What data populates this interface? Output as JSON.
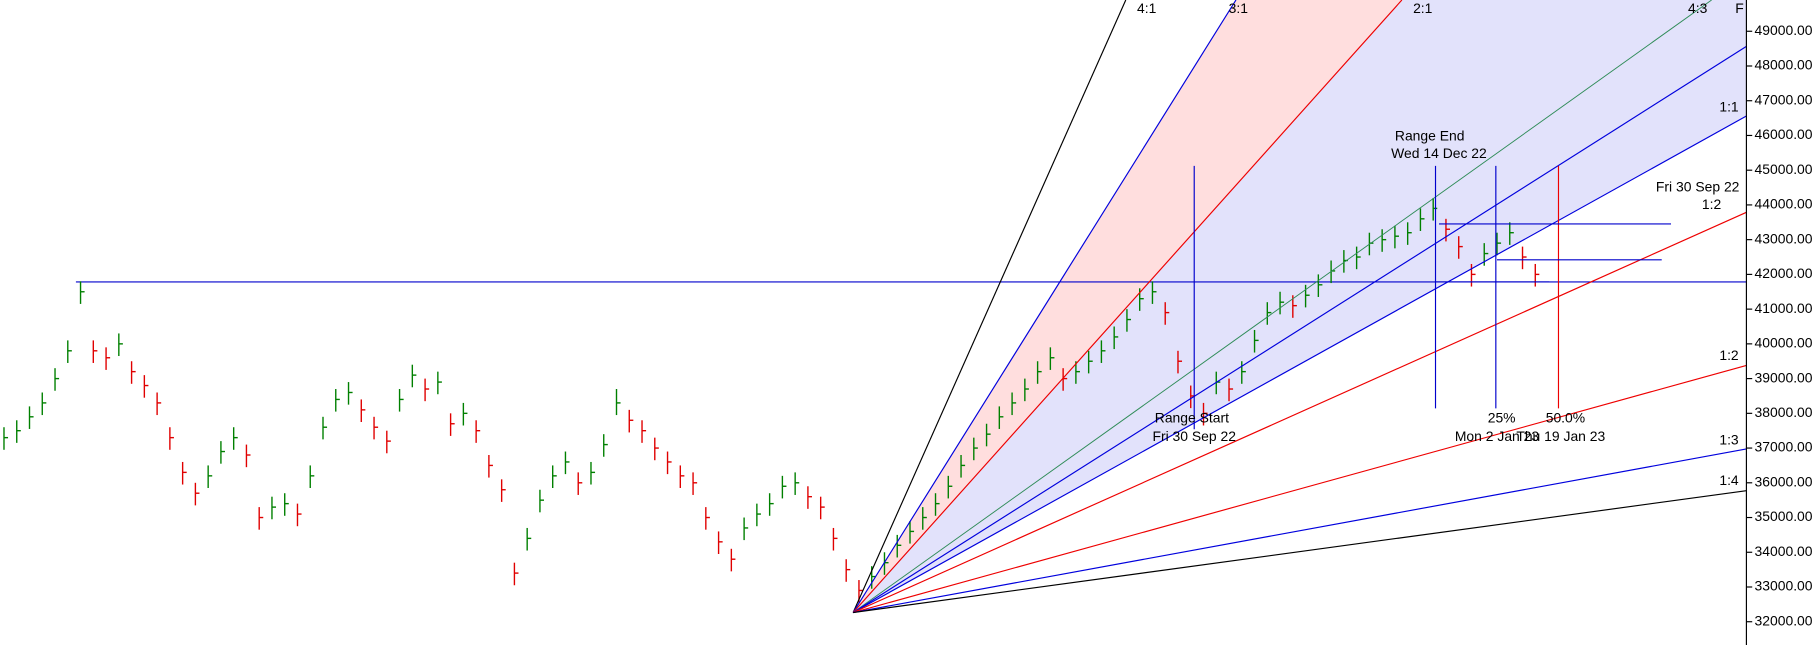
{
  "chart_data": {
    "type": "ohlc",
    "up_color": "#008000",
    "down_color": "#e00000",
    "ylim": [
      31330,
      49900
    ],
    "yticks": [
      {
        "value": 32000,
        "label": "32000.00"
      },
      {
        "value": 33000,
        "label": "33000.00"
      },
      {
        "value": 34000,
        "label": "34000.00"
      },
      {
        "value": 35000,
        "label": "35000.00"
      },
      {
        "value": 36000,
        "label": "36000.00"
      },
      {
        "value": 37000,
        "label": "37000.00"
      },
      {
        "value": 38000,
        "label": "38000.00"
      },
      {
        "value": 39000,
        "label": "39000.00"
      },
      {
        "value": 40000,
        "label": "40000.00"
      },
      {
        "value": 41000,
        "label": "41000.00"
      },
      {
        "value": 42000,
        "label": "42000.00"
      },
      {
        "value": 43000,
        "label": "43000.00"
      },
      {
        "value": 44000,
        "label": "44000.00"
      },
      {
        "value": 45000,
        "label": "45000.00"
      },
      {
        "value": 46000,
        "label": "46000.00"
      },
      {
        "value": 47000,
        "label": "47000.00"
      },
      {
        "value": 48000,
        "label": "48000.00"
      },
      {
        "value": 49000,
        "label": "49000.00"
      }
    ],
    "high": [
      37600,
      37800,
      38200,
      38600,
      39300,
      40100,
      41800,
      40100,
      39900,
      40300,
      39500,
      39100,
      38600,
      37600,
      36600,
      36000,
      36500,
      37200,
      37600,
      37100,
      35300,
      35600,
      35700,
      35400,
      36500,
      37900,
      38700,
      38900,
      38400,
      37900,
      37500,
      38700,
      39400,
      39000,
      39200,
      38000,
      38300,
      37800,
      36800,
      36100,
      33700,
      34700,
      35800,
      36500,
      36900,
      36300,
      36600,
      37400,
      38700,
      38100,
      37800,
      37300,
      36900,
      36500,
      36300,
      35300,
      34600,
      34100,
      35000,
      35400,
      35700,
      36200,
      36300,
      35900,
      35600,
      34700,
      33800,
      33200,
      33600,
      34000,
      34500,
      34900,
      35300,
      35700,
      36200,
      36800,
      37300,
      37700,
      38200,
      38600,
      39000,
      39500,
      39900,
      39300,
      39500,
      39800,
      40100,
      40500,
      41000,
      41600,
      41800,
      41200,
      39800,
      38800,
      38300,
      39200,
      39000,
      39500,
      40400,
      41200,
      41500,
      41400,
      41700,
      42000,
      42400,
      42700,
      42800,
      43200,
      43300,
      43400,
      43500,
      43900,
      44200,
      43600,
      43100,
      42300,
      42900,
      43200,
      43500,
      42800,
      42300
    ],
    "low": [
      36950,
      37150,
      37550,
      37950,
      38650,
      39450,
      41150,
      39450,
      39250,
      39650,
      38850,
      38450,
      37950,
      36950,
      35950,
      35350,
      35850,
      36550,
      36950,
      36450,
      34650,
      34950,
      35050,
      34750,
      35850,
      37250,
      38050,
      38250,
      37750,
      37250,
      36850,
      38050,
      38750,
      38350,
      38550,
      37350,
      37650,
      37150,
      36150,
      35450,
      33050,
      34050,
      35150,
      35850,
      36250,
      35650,
      35950,
      36750,
      37950,
      37450,
      37150,
      36650,
      36250,
      35850,
      35650,
      34650,
      33950,
      33450,
      34350,
      34750,
      35050,
      35550,
      35650,
      35250,
      34950,
      34050,
      33150,
      32550,
      32950,
      33350,
      33850,
      34250,
      34650,
      35050,
      35550,
      36150,
      36650,
      37050,
      37550,
      37950,
      38350,
      38850,
      39250,
      38650,
      38850,
      39150,
      39450,
      39850,
      40350,
      40950,
      41150,
      40550,
      39150,
      38150,
      37650,
      38550,
      38350,
      38850,
      39750,
      40550,
      40850,
      40750,
      41050,
      41350,
      41750,
      42050,
      42150,
      42550,
      42650,
      42750,
      42850,
      43250,
      43550,
      42950,
      42450,
      41650,
      42250,
      42550,
      42850,
      42150,
      41650
    ],
    "close": [
      37300,
      37500,
      37900,
      38300,
      39000,
      39800,
      41500,
      39800,
      39600,
      40000,
      39200,
      38800,
      38300,
      37300,
      36300,
      35700,
      36200,
      36900,
      37300,
      36800,
      35000,
      35300,
      35400,
      35100,
      36200,
      37600,
      38400,
      38600,
      38100,
      37600,
      37200,
      38400,
      39100,
      38700,
      38900,
      37700,
      38000,
      37500,
      36500,
      35800,
      33400,
      34400,
      35500,
      36200,
      36600,
      36000,
      36300,
      37100,
      38300,
      37800,
      37500,
      37000,
      36600,
      36200,
      36000,
      35000,
      34300,
      33800,
      34700,
      35100,
      35400,
      35900,
      36000,
      35600,
      35300,
      34400,
      33500,
      32900,
      33300,
      33700,
      34200,
      34600,
      35000,
      35400,
      35900,
      36500,
      37000,
      37400,
      37900,
      38300,
      38700,
      39200,
      39600,
      39000,
      39200,
      39500,
      39800,
      40200,
      40700,
      41300,
      41500,
      40900,
      39500,
      38500,
      38000,
      38900,
      38700,
      39200,
      40100,
      40900,
      41200,
      41100,
      41400,
      41700,
      42100,
      42400,
      42500,
      42900,
      43000,
      43100,
      43200,
      43600,
      43900,
      43300,
      42800,
      42000,
      42600,
      42900,
      43200,
      42500,
      42000
    ],
    "fan_labels": [
      "4:1",
      "3:1",
      "2:1",
      "4:3",
      "F",
      "1:1",
      "1:2",
      "1:2",
      "1:3",
      "1:4"
    ],
    "annotations": [
      "Range End",
      "Wed 14 Dec 22",
      "Range Start",
      "Fri 30 Sep 22",
      "25%",
      "50.0%",
      "Mon 2 Jan 23",
      "Thu 19 Jan 23",
      "Fri 30 Sep 22"
    ]
  }
}
